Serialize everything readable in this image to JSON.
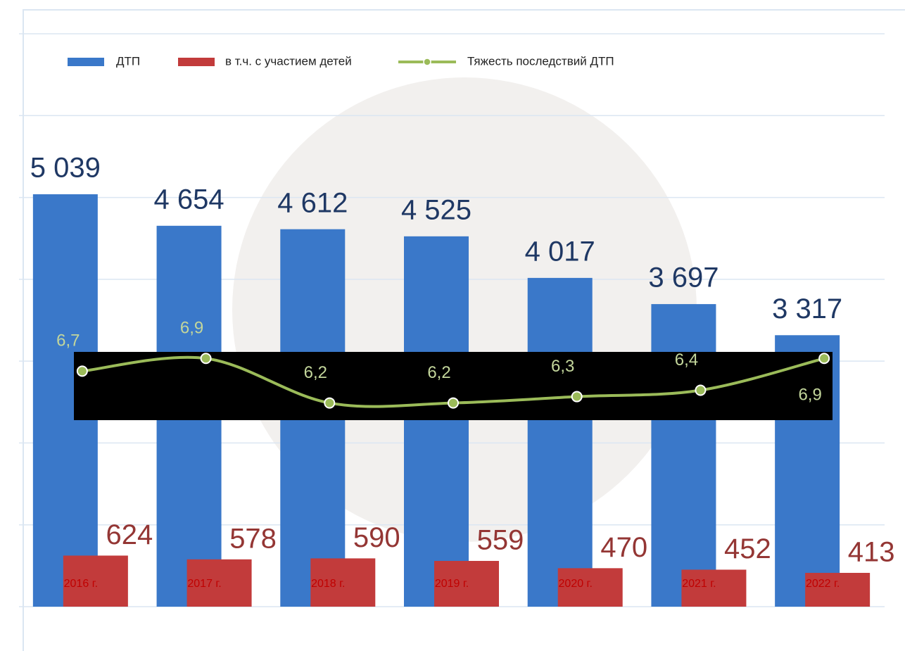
{
  "chart_data": {
    "type": "bar",
    "categories": [
      "2016 г.",
      "2017 г.",
      "2018 г.",
      "2019 г.",
      "2020 г.",
      "2021 г.",
      "2022 г."
    ],
    "series": [
      {
        "name": "ДТП",
        "color": "#3a78c9",
        "values": [
          5039,
          4654,
          4612,
          4525,
          4017,
          3697,
          3317
        ],
        "value_labels": [
          "5 039",
          "4 654",
          "4 612",
          "4 525",
          "4 017",
          "3 697",
          "3 317"
        ]
      },
      {
        "name": "в т.ч. с участием детей",
        "color": "#c23b3b",
        "values": [
          624,
          578,
          590,
          559,
          470,
          452,
          413
        ]
      },
      {
        "name": "Тяжесть последствий ДТП",
        "color": "#9bbb59",
        "type": "line",
        "axis": "y2",
        "values": [
          6.7,
          6.9,
          6.2,
          6.2,
          6.3,
          6.4,
          6.9
        ],
        "value_labels": [
          "6,7",
          "6,9",
          "6,2",
          "6,2",
          "6,3",
          "6,4",
          "6,9"
        ]
      }
    ],
    "ylim": [
      0,
      7000
    ],
    "yticks": [
      0,
      1000,
      2000,
      3000,
      4000,
      5000,
      6000,
      7000
    ],
    "y2lim": [
      3,
      12
    ],
    "grid": true,
    "legend": "top"
  }
}
